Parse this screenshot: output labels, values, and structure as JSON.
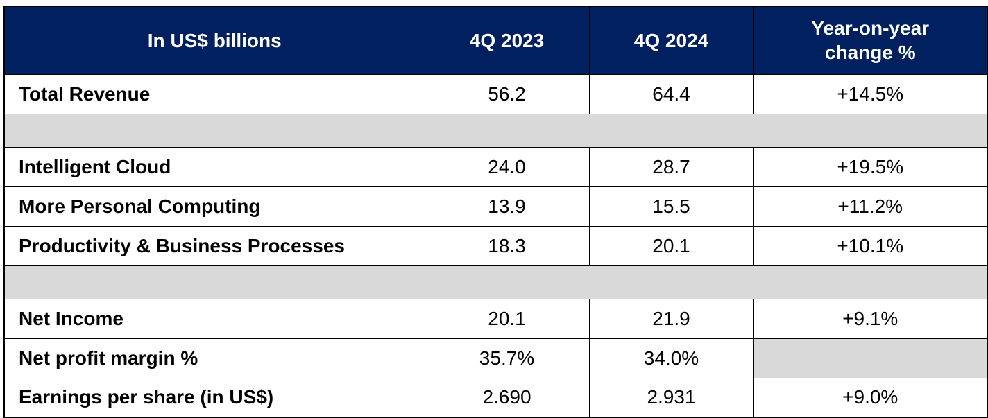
{
  "table": {
    "header": [
      "In US$ billions",
      "4Q 2023",
      "4Q 2024",
      "Year-on-year change %"
    ],
    "rows": [
      [
        "Total Revenue",
        "56.2",
        "64.4",
        "+14.5%"
      ],
      [
        "Intelligent Cloud",
        "24.0",
        "28.7",
        "+19.5%"
      ],
      [
        "More Personal Computing",
        "13.9",
        "15.5",
        "+11.2%"
      ],
      [
        "Productivity & Business Processes",
        "18.3",
        "20.1",
        "+10.1%"
      ],
      [
        "Net Income",
        "20.1",
        "21.9",
        "+9.1%"
      ],
      [
        "Net profit margin %",
        "35.7%",
        "34.0%"
      ],
      [
        "Earnings per share (in US$)",
        "2.690",
        "2.931",
        "+9.0%"
      ]
    ]
  }
}
